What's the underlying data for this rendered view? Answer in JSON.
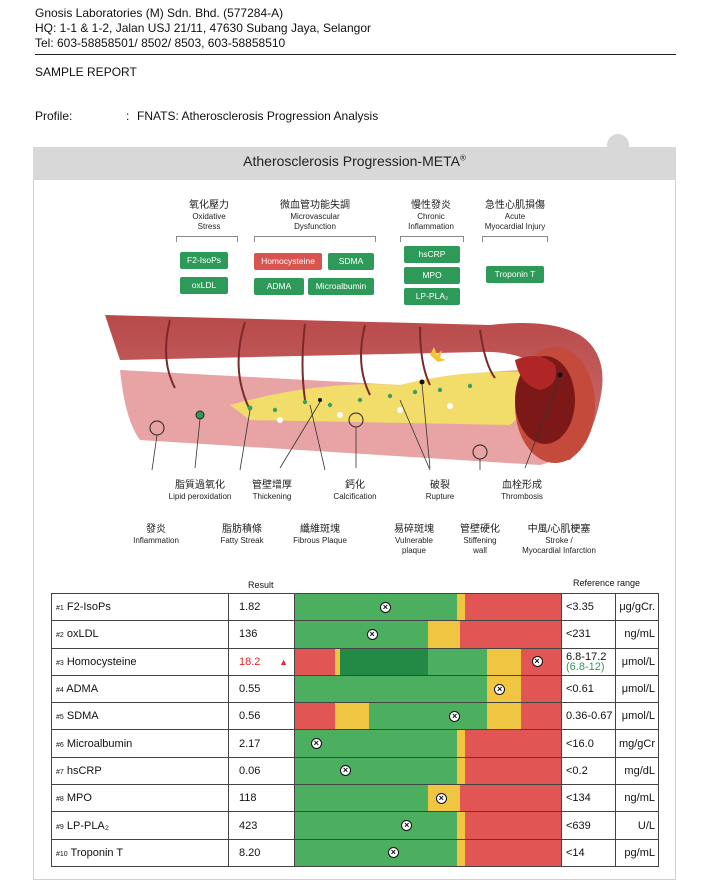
{
  "lab": {
    "name": "Gnosis Laboratories (M) Sdn. Bhd. (577284-A)",
    "address": "HQ: 1-1 & 1-2, Jalan USJ 21/11, 47630 Subang Jaya, Selangor",
    "tel": "Tel: 603-58858501/ 8502/ 8503, 603-58858510"
  },
  "report_type": "SAMPLE REPORT",
  "profile": {
    "label": "Profile:",
    "colon": ":",
    "value": "FNATS: Atherosclerosis Progression Analysis"
  },
  "banner": {
    "title": "Atherosclerosis Progression-META",
    "mark": "®"
  },
  "categories": [
    {
      "zh": "氧化壓力",
      "en1": "Oxidative",
      "en2": "Stress"
    },
    {
      "zh": "微血管功能失調",
      "en1": "Microvascular",
      "en2": "Dysfunction"
    },
    {
      "zh": "慢性發炎",
      "en1": "Chronic",
      "en2": "Inflammation"
    },
    {
      "zh": "急性心肌損傷",
      "en1": "Acute",
      "en2": "Myocardial Injury"
    }
  ],
  "marker_buttons": [
    {
      "label": "F2-IsoPs"
    },
    {
      "label": "oxLDL"
    },
    {
      "label": "Homocysteine"
    },
    {
      "label": "SDMA"
    },
    {
      "label": "ADMA"
    },
    {
      "label": "Microalbumin"
    },
    {
      "label": "hsCRP"
    },
    {
      "label": "MPO"
    },
    {
      "label": "LP-PLA₂"
    },
    {
      "label": "Troponin T"
    }
  ],
  "upper_captions": [
    {
      "zh": "脂質過氧化",
      "en": "Lipid peroxidation"
    },
    {
      "zh": "管壁增厚",
      "en": "Thickening"
    },
    {
      "zh": "鈣化",
      "en": "Calcification"
    },
    {
      "zh": "破裂",
      "en": "Rupture"
    },
    {
      "zh": "血栓形成",
      "en": "Thrombosis"
    }
  ],
  "lower_captions": [
    {
      "zh": "發炎",
      "en": "Inflammation",
      "en2": ""
    },
    {
      "zh": "脂肪積條",
      "en": "Fatty Streak",
      "en2": ""
    },
    {
      "zh": "纖維斑塊",
      "en": "Fibrous Plaque",
      "en2": ""
    },
    {
      "zh": "易碎斑塊",
      "en": "Vulnerable",
      "en2": "plaque"
    },
    {
      "zh": "管壁硬化",
      "en": "Stiffening",
      "en2": "wall"
    },
    {
      "zh": "中風/心肌梗塞",
      "en": "Stroke /",
      "en2": "Myocardial Infarction"
    }
  ],
  "table_headers": {
    "result": "Result",
    "reference": "Reference range"
  },
  "colors": {
    "green": "#4caf5f",
    "dark_green": "#238a46",
    "yellow": "#f0c541",
    "red": "#e15554",
    "flag_red": "#e8262e"
  },
  "results": [
    {
      "num": "#1",
      "name": "F2-IsoPs",
      "value": "1.82",
      "flag": false,
      "ref": "<3.35",
      "ref_alt": "",
      "unit": "μg/gCr.",
      "segments": [
        [
          "green",
          0,
          0.61
        ],
        [
          "yellow",
          0.61,
          0.64
        ],
        [
          "red",
          0.64,
          1.0
        ]
      ],
      "marker": 0.34
    },
    {
      "num": "#2",
      "name": "oxLDL",
      "value": "136",
      "flag": false,
      "ref": "<231",
      "ref_alt": "",
      "unit": "ng/mL",
      "segments": [
        [
          "green",
          0,
          0.5
        ],
        [
          "yellow",
          0.5,
          0.62
        ],
        [
          "red",
          0.62,
          1.0
        ]
      ],
      "marker": 0.29
    },
    {
      "num": "#3",
      "name": "Homocysteine",
      "value": "18.2",
      "flag": true,
      "ref": "6.8-17.2",
      "ref_alt": "(6.8-12)",
      "unit": "μmol/L",
      "segments": [
        [
          "red",
          0,
          0.15
        ],
        [
          "yellow",
          0.15,
          0.17
        ],
        [
          "dark_green",
          0.17,
          0.5
        ],
        [
          "green",
          0.5,
          0.72
        ],
        [
          "yellow",
          0.72,
          0.85
        ],
        [
          "red",
          0.85,
          1.0
        ]
      ],
      "marker": 0.91
    },
    {
      "num": "#4",
      "name": "ADMA",
      "value": "0.55",
      "flag": false,
      "ref": "<0.61",
      "ref_alt": "",
      "unit": "μmol/L",
      "segments": [
        [
          "green",
          0,
          0.72
        ],
        [
          "yellow",
          0.72,
          0.85
        ],
        [
          "red",
          0.85,
          1.0
        ]
      ],
      "marker": 0.77
    },
    {
      "num": "#5",
      "name": "SDMA",
      "value": "0.56",
      "flag": false,
      "ref": "0.36-0.67",
      "ref_alt": "",
      "unit": "μmol/L",
      "segments": [
        [
          "red",
          0,
          0.15
        ],
        [
          "yellow",
          0.15,
          0.28
        ],
        [
          "green",
          0.28,
          0.72
        ],
        [
          "yellow",
          0.72,
          0.85
        ],
        [
          "red",
          0.85,
          1.0
        ]
      ],
      "marker": 0.6
    },
    {
      "num": "#6",
      "name": "Microalbumin",
      "value": "2.17",
      "flag": false,
      "ref": "<16.0",
      "ref_alt": "",
      "unit": "mg/gCr",
      "segments": [
        [
          "green",
          0,
          0.61
        ],
        [
          "yellow",
          0.61,
          0.64
        ],
        [
          "red",
          0.64,
          1.0
        ]
      ],
      "marker": 0.08
    },
    {
      "num": "#7",
      "name": "hsCRP",
      "value": "0.06",
      "flag": false,
      "ref": "<0.2",
      "ref_alt": "",
      "unit": "mg/dL",
      "segments": [
        [
          "green",
          0,
          0.61
        ],
        [
          "yellow",
          0.61,
          0.64
        ],
        [
          "red",
          0.64,
          1.0
        ]
      ],
      "marker": 0.19
    },
    {
      "num": "#8",
      "name": "MPO",
      "value": "118",
      "flag": false,
      "ref": "<134",
      "ref_alt": "",
      "unit": "ng/mL",
      "segments": [
        [
          "green",
          0,
          0.5
        ],
        [
          "yellow",
          0.5,
          0.62
        ],
        [
          "red",
          0.62,
          1.0
        ]
      ],
      "marker": 0.55
    },
    {
      "num": "#9",
      "name": "LP-PLA₂",
      "value": "423",
      "flag": false,
      "ref": "<639",
      "ref_alt": "",
      "unit": "U/L",
      "segments": [
        [
          "green",
          0,
          0.61
        ],
        [
          "yellow",
          0.61,
          0.64
        ],
        [
          "red",
          0.64,
          1.0
        ]
      ],
      "marker": 0.42
    },
    {
      "num": "#10",
      "name": "Troponin T",
      "value": "8.20",
      "flag": false,
      "ref": "<14",
      "ref_alt": "",
      "unit": "pg/mL",
      "segments": [
        [
          "green",
          0,
          0.61
        ],
        [
          "yellow",
          0.61,
          0.64
        ],
        [
          "red",
          0.64,
          1.0
        ]
      ],
      "marker": 0.37
    }
  ]
}
